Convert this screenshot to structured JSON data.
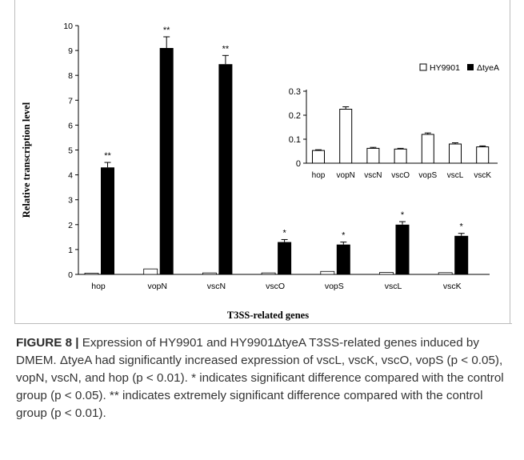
{
  "figure": {
    "xlabel": "T3SS-related genes",
    "ylabel": "Relative transcription level"
  },
  "caption": {
    "label": "FIGURE 8 |",
    "text": " Expression of HY9901 and HY9901ΔtyeA T3SS-related genes induced by DMEM. ΔtyeA had significantly increased expression of vscL, vscK, vscO, vopS (p < 0.05), vopN, vscN, and hop (p < 0.01). * indicates significant difference compared with the control group (p < 0.05). ** indicates extremely significant difference compared with the control group (p < 0.01)."
  },
  "colors": {
    "wildtype_fill": "#ffffff",
    "mutant_fill": "#000000",
    "axis": "#000000"
  },
  "chart_data": [
    {
      "type": "bar",
      "name": "main",
      "categories": [
        "hop",
        "vopN",
        "vscN",
        "vscO",
        "vopS",
        "vscL",
        "vscK"
      ],
      "series": [
        {
          "name": "HY9901",
          "values": [
            0.05,
            0.22,
            0.06,
            0.06,
            0.12,
            0.08,
            0.07
          ],
          "errors": [
            0,
            0,
            0,
            0,
            0,
            0,
            0
          ]
        },
        {
          "name": "ΔtyeA",
          "values": [
            4.3,
            9.1,
            8.45,
            1.3,
            1.2,
            2.0,
            1.55
          ],
          "errors": [
            0.2,
            0.45,
            0.35,
            0.1,
            0.1,
            0.12,
            0.1
          ]
        }
      ],
      "significance": [
        "**",
        "**",
        "**",
        "*",
        "*",
        "*",
        "*"
      ],
      "ylim": [
        0,
        10
      ],
      "yticks": [
        0,
        1,
        2,
        3,
        4,
        5,
        6,
        7,
        8,
        9,
        10
      ],
      "xlabel": "T3SS-related genes",
      "ylabel": "Relative transcription level",
      "legend": "top-right"
    },
    {
      "type": "bar",
      "name": "inset",
      "categories": [
        "hop",
        "vopN",
        "vscN",
        "vscO",
        "vopS",
        "vscL",
        "vscK"
      ],
      "series": [
        {
          "name": "HY9901",
          "values": [
            0.053,
            0.225,
            0.062,
            0.059,
            0.12,
            0.08,
            0.068
          ],
          "errors": [
            0.003,
            0.01,
            0.004,
            0.003,
            0.006,
            0.005,
            0.004
          ]
        }
      ],
      "ylim": [
        0,
        0.3
      ],
      "yticks": [
        0,
        0.1,
        0.2,
        0.3
      ],
      "ytick_labels": [
        "0",
        "0.1",
        "0.2",
        "0.3"
      ]
    }
  ]
}
